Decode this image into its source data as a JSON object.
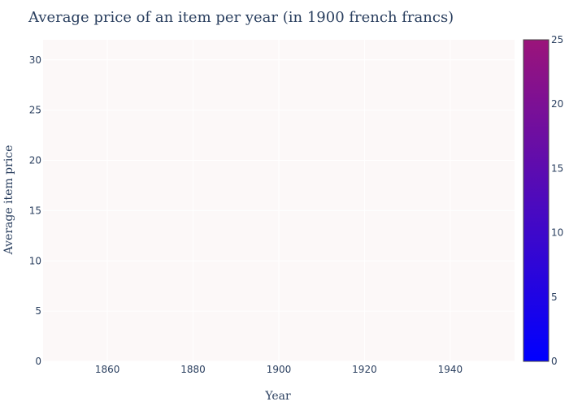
{
  "chart_data": {
    "type": "heatmap",
    "title": "Average price of an item per year (in 1900 french francs)",
    "xlabel": "Year",
    "ylabel": "Average item price",
    "xlim": [
      1845,
      1955
    ],
    "ylim": [
      0,
      32
    ],
    "x_ticks": [
      1860,
      1880,
      1900,
      1920,
      1940
    ],
    "y_ticks": [
      0,
      5,
      10,
      15,
      20,
      25,
      30
    ],
    "colorbar": {
      "range": [
        0,
        25
      ],
      "ticks": [
        0,
        5,
        10,
        15,
        20,
        25
      ],
      "colors": [
        "#0000ff",
        "#9b147a"
      ]
    },
    "plot_background": "#fcf8f8",
    "grid": true,
    "values": []
  }
}
